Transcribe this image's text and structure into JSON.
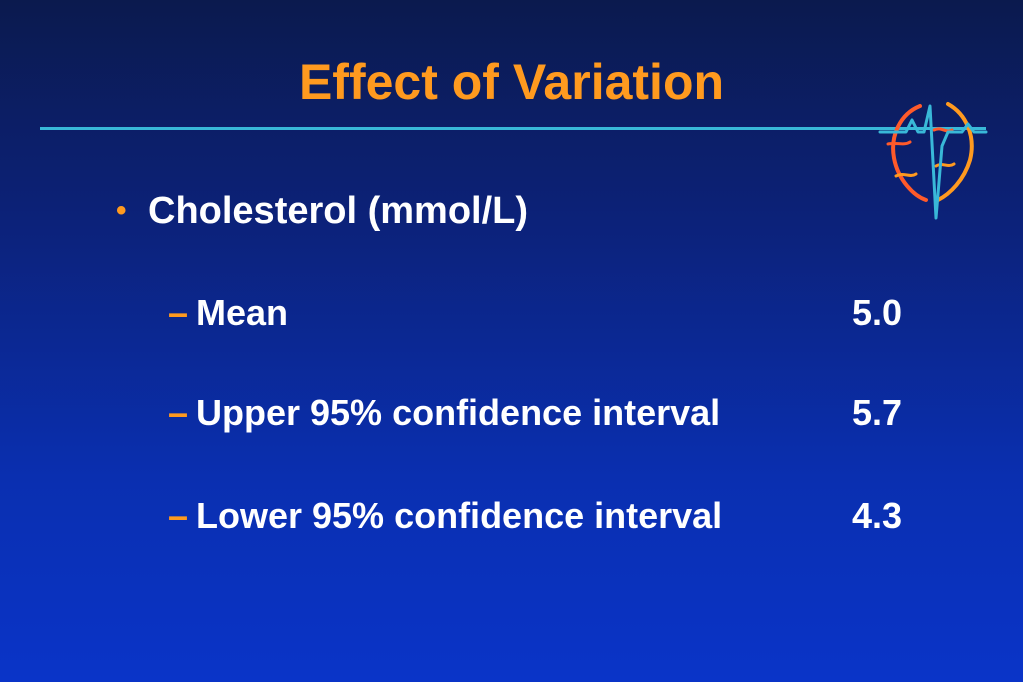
{
  "slide": {
    "title": "Effect of Variation",
    "colors": {
      "title": "#ff9a1f",
      "rule": "#39b8d8",
      "text": "#ffffff",
      "background_top": "#0b1a4e",
      "background_bottom": "#0a34c8"
    },
    "logo_icon": "ecg-heart-logo-icon",
    "bullet": {
      "marker": "•",
      "text": "Cholesterol (mmol/L)"
    },
    "items": [
      {
        "dash": "–",
        "label": "Mean",
        "value": "5.0"
      },
      {
        "dash": "–",
        "label": "Upper 95% confidence interval",
        "value": "5.7"
      },
      {
        "dash": "–",
        "label": "Lower 95% confidence interval",
        "value": "4.3"
      }
    ]
  }
}
